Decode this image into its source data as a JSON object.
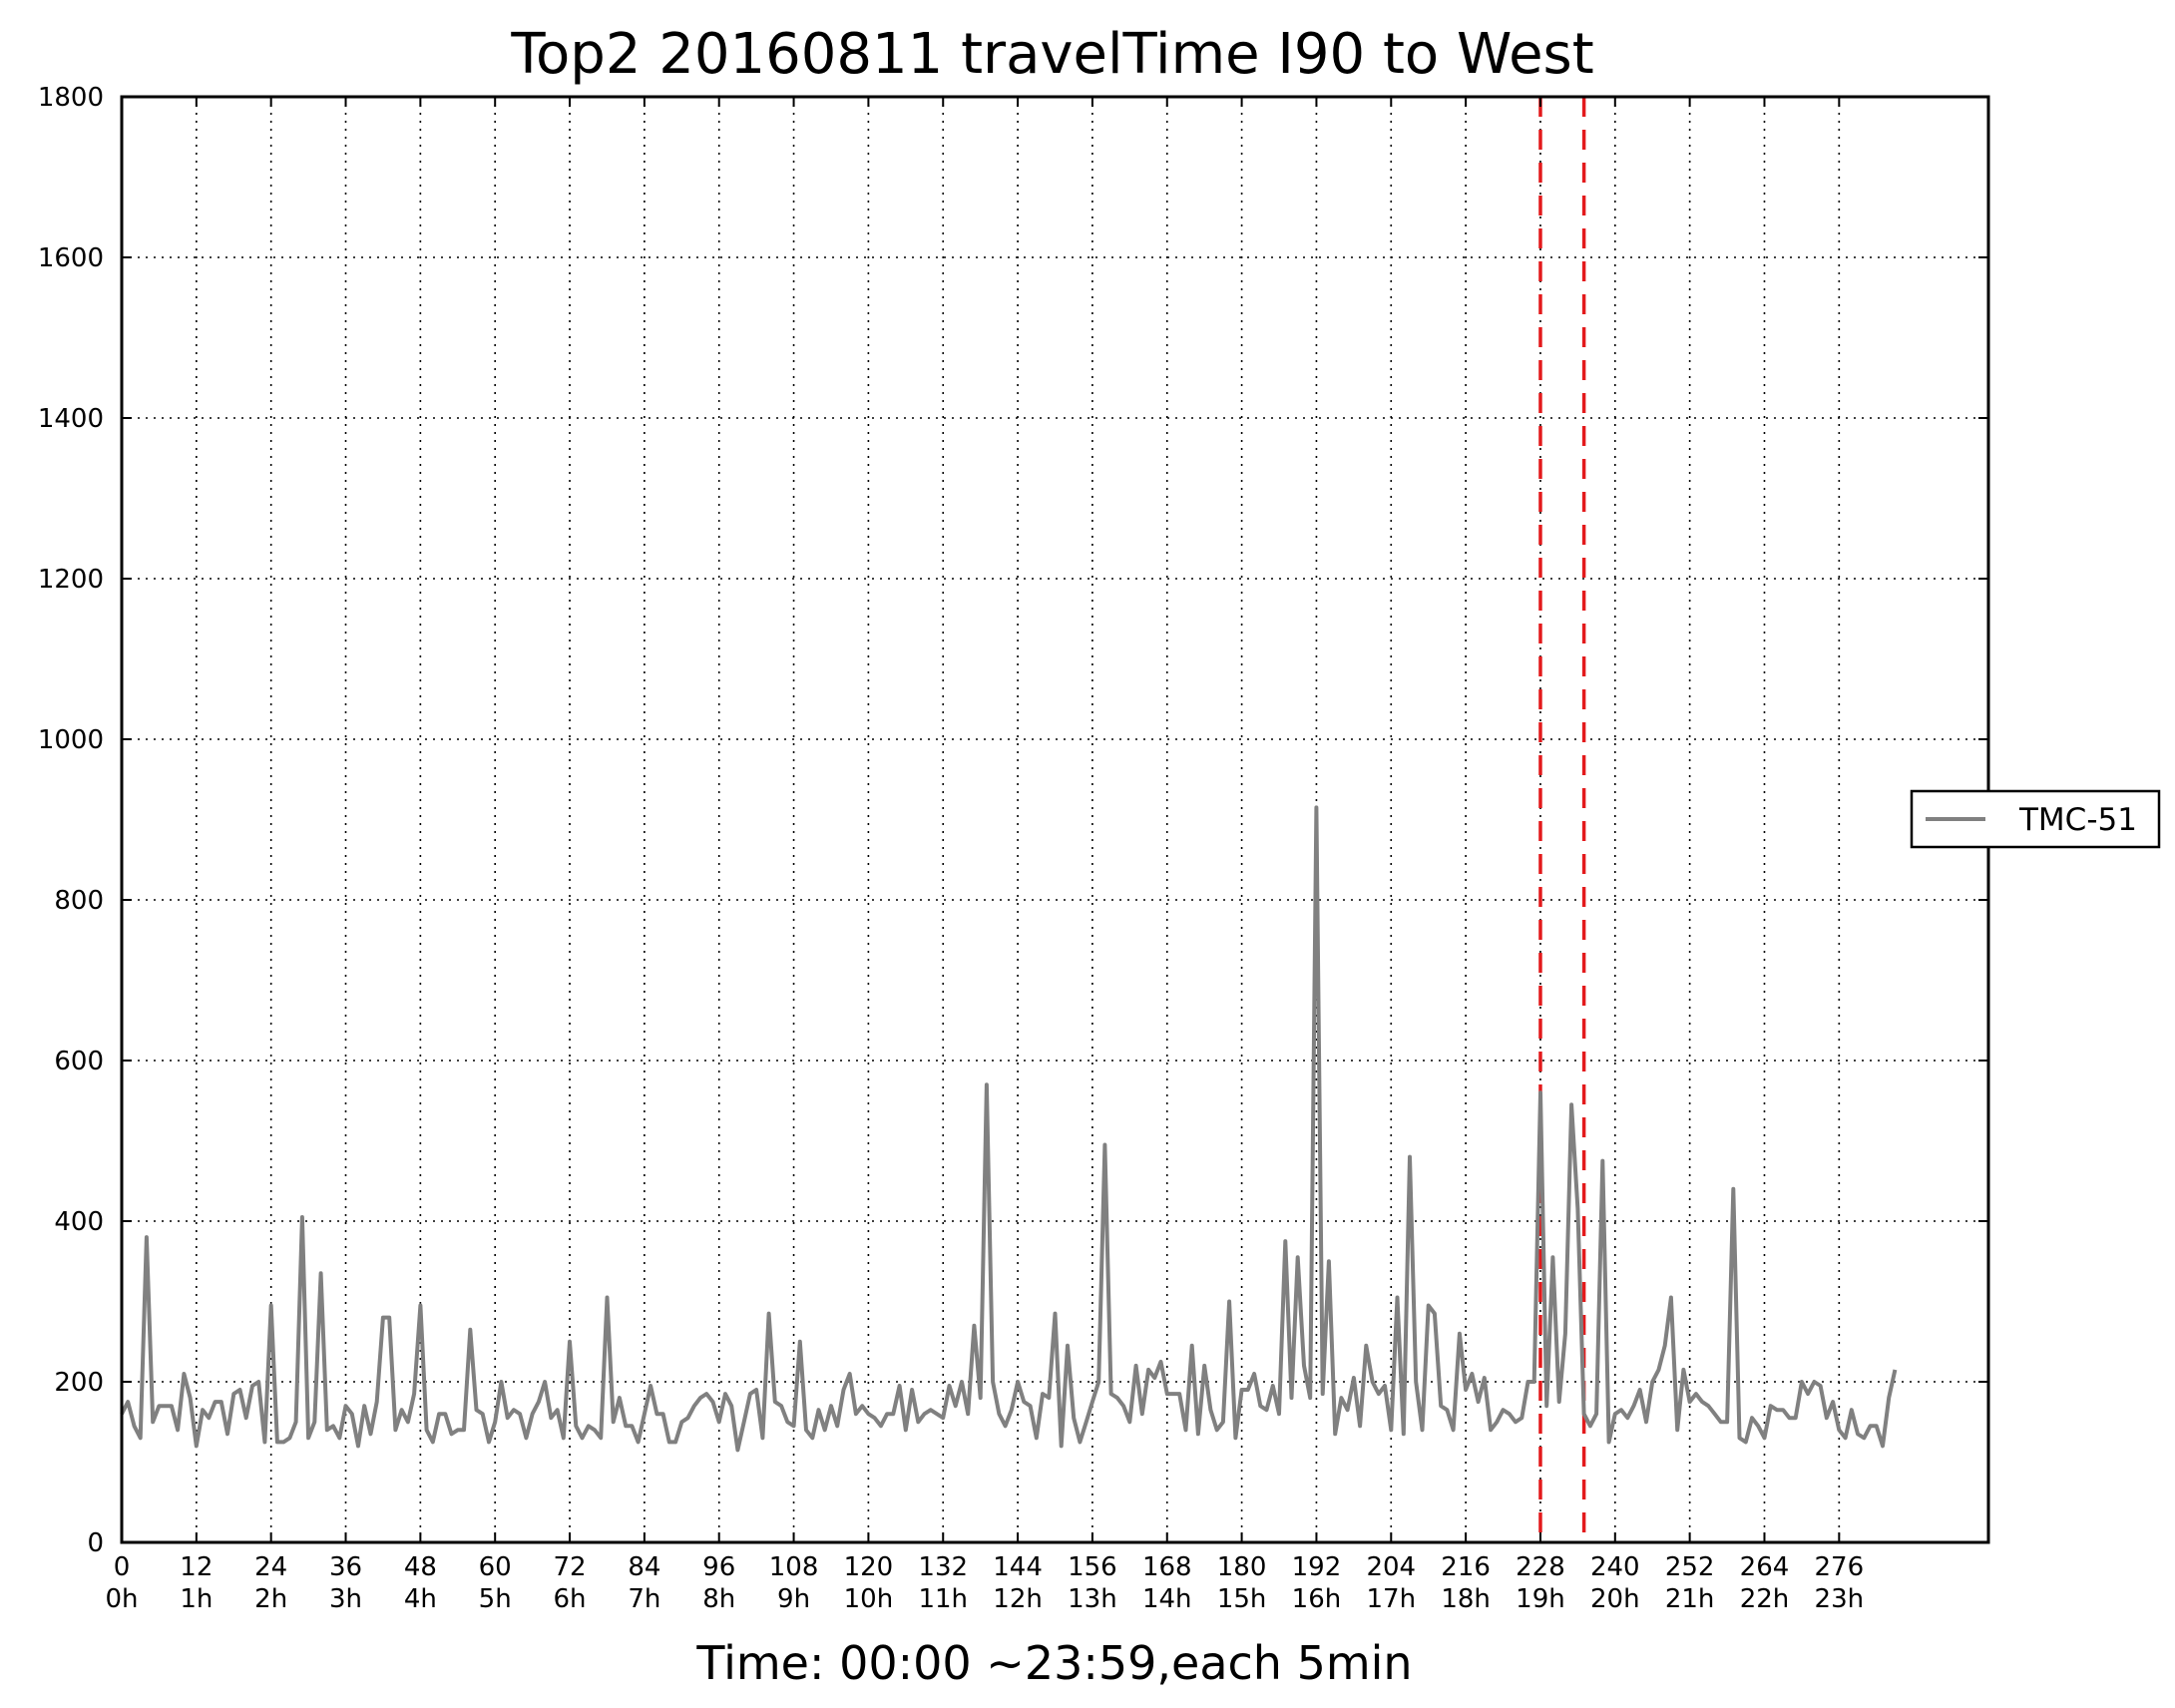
{
  "chart_data": {
    "type": "line",
    "title": "Top2 20160811 travelTime I90 to West",
    "xlabel": "Time: 00:00 ~23:59,each 5min",
    "ylabel": "",
    "xlim": [
      0,
      300
    ],
    "ylim": [
      0,
      1800
    ],
    "yticks": [
      0,
      200,
      400,
      600,
      800,
      1000,
      1200,
      1400,
      1600,
      1800
    ],
    "xticks": [
      {
        "value": 0,
        "label": "0",
        "sublabel": "0h"
      },
      {
        "value": 12,
        "label": "12",
        "sublabel": "1h"
      },
      {
        "value": 24,
        "label": "24",
        "sublabel": "2h"
      },
      {
        "value": 36,
        "label": "36",
        "sublabel": "3h"
      },
      {
        "value": 48,
        "label": "48",
        "sublabel": "4h"
      },
      {
        "value": 60,
        "label": "60",
        "sublabel": "5h"
      },
      {
        "value": 72,
        "label": "72",
        "sublabel": "6h"
      },
      {
        "value": 84,
        "label": "84",
        "sublabel": "7h"
      },
      {
        "value": 96,
        "label": "96",
        "sublabel": "8h"
      },
      {
        "value": 108,
        "label": "108",
        "sublabel": "9h"
      },
      {
        "value": 120,
        "label": "120",
        "sublabel": "10h"
      },
      {
        "value": 132,
        "label": "132",
        "sublabel": "11h"
      },
      {
        "value": 144,
        "label": "144",
        "sublabel": "12h"
      },
      {
        "value": 156,
        "label": "156",
        "sublabel": "13h"
      },
      {
        "value": 168,
        "label": "168",
        "sublabel": "14h"
      },
      {
        "value": 180,
        "label": "180",
        "sublabel": "15h"
      },
      {
        "value": 192,
        "label": "192",
        "sublabel": "16h"
      },
      {
        "value": 204,
        "label": "204",
        "sublabel": "17h"
      },
      {
        "value": 216,
        "label": "216",
        "sublabel": "18h"
      },
      {
        "value": 228,
        "label": "228",
        "sublabel": "19h"
      },
      {
        "value": 240,
        "label": "240",
        "sublabel": "20h"
      },
      {
        "value": 252,
        "label": "252",
        "sublabel": "21h"
      },
      {
        "value": 264,
        "label": "264",
        "sublabel": "22h"
      },
      {
        "value": 276,
        "label": "276",
        "sublabel": "23h"
      }
    ],
    "grid": true,
    "legend_position": "right",
    "vertical_markers": [
      {
        "x": 228,
        "color": "#e31a1c",
        "style": "dashed"
      },
      {
        "x": 235,
        "color": "#e31a1c",
        "style": "dashed"
      }
    ],
    "series": [
      {
        "name": "TMC-51",
        "color": "#808080",
        "values": [
          160,
          175,
          145,
          130,
          380,
          150,
          170,
          170,
          170,
          140,
          210,
          180,
          120,
          165,
          155,
          175,
          175,
          135,
          185,
          190,
          155,
          195,
          200,
          125,
          295,
          125,
          125,
          130,
          150,
          405,
          130,
          150,
          335,
          140,
          145,
          130,
          170,
          160,
          120,
          170,
          135,
          175,
          280,
          280,
          140,
          165,
          150,
          185,
          295,
          140,
          125,
          160,
          160,
          135,
          140,
          140,
          265,
          165,
          160,
          125,
          150,
          200,
          155,
          165,
          160,
          130,
          160,
          175,
          200,
          155,
          165,
          130,
          250,
          145,
          130,
          145,
          140,
          130,
          305,
          150,
          180,
          145,
          145,
          125,
          160,
          195,
          160,
          160,
          125,
          125,
          150,
          155,
          170,
          180,
          185,
          175,
          150,
          185,
          170,
          115,
          150,
          185,
          190,
          130,
          285,
          175,
          170,
          150,
          145,
          250,
          140,
          130,
          165,
          140,
          170,
          145,
          190,
          210,
          160,
          170,
          160,
          155,
          145,
          160,
          160,
          195,
          140,
          190,
          150,
          160,
          165,
          160,
          155,
          195,
          170,
          200,
          160,
          270,
          180,
          570,
          200,
          160,
          145,
          165,
          200,
          175,
          170,
          130,
          185,
          180,
          285,
          120,
          245,
          155,
          125,
          150,
          175,
          200,
          495,
          185,
          180,
          170,
          150,
          220,
          160,
          215,
          205,
          225,
          185,
          185,
          185,
          140,
          245,
          135,
          220,
          165,
          140,
          150,
          300,
          130,
          190,
          190,
          210,
          170,
          165,
          195,
          160,
          375,
          180,
          355,
          220,
          180,
          915,
          185,
          350,
          135,
          180,
          165,
          205,
          145,
          245,
          200,
          185,
          195,
          140,
          305,
          135,
          480,
          200,
          140,
          295,
          285,
          170,
          165,
          140,
          260,
          190,
          210,
          175,
          205,
          140,
          150,
          165,
          160,
          150,
          155,
          200,
          200,
          560,
          170,
          355,
          175,
          260,
          545,
          415,
          160,
          145,
          160,
          475,
          125,
          160,
          165,
          155,
          170,
          190,
          150,
          200,
          215,
          245,
          305,
          140,
          215,
          175,
          185,
          175,
          170,
          160,
          150,
          150,
          440,
          130,
          125,
          155,
          145,
          130,
          170,
          165,
          165,
          155,
          155,
          200,
          185,
          200,
          195,
          155,
          175,
          140,
          130,
          165,
          135,
          130,
          145,
          145,
          120,
          180,
          215
        ]
      }
    ]
  }
}
